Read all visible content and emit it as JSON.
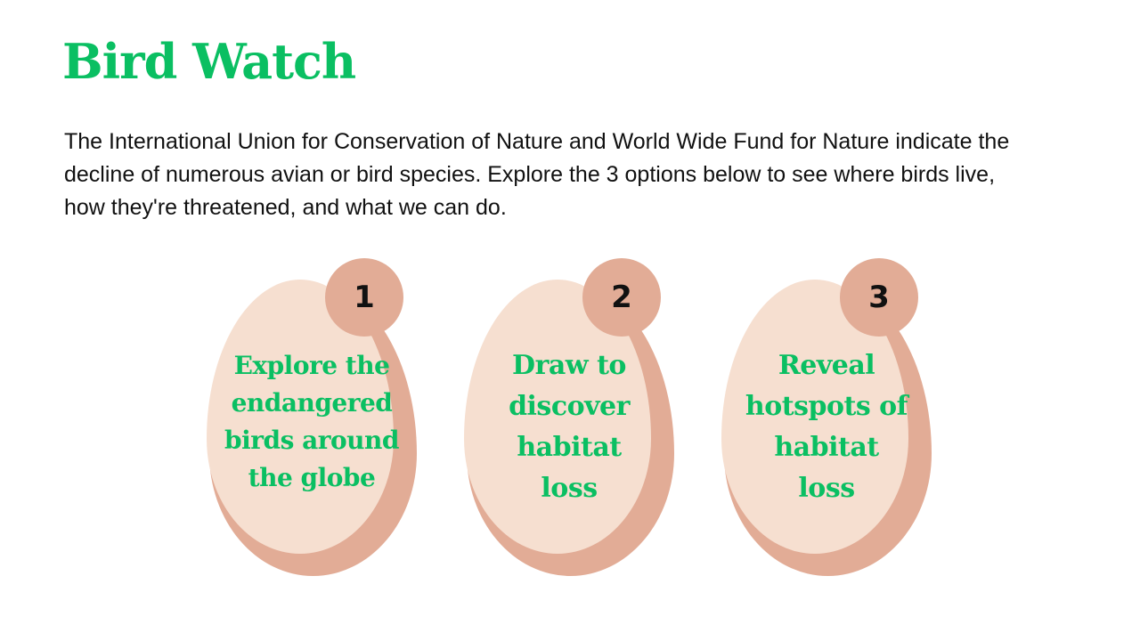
{
  "title": "Bird Watch",
  "intro": "The International Union for Conservation of Nature and World Wide Fund for Nature indicate the decline of numerous avian or bird species. Explore the 3 options below to see where birds live, how they're threatened, and what we can do.",
  "colors": {
    "accent_green": "#0abf62",
    "egg_light": "#f6dfd0",
    "egg_shadow": "#e2ac96",
    "text_dark": "#111111"
  },
  "options": [
    {
      "number": "1",
      "lines": [
        "Explore the",
        "endangered",
        "birds around",
        "the globe"
      ]
    },
    {
      "number": "2",
      "lines": [
        "Draw to",
        "discover",
        "habitat",
        "loss"
      ]
    },
    {
      "number": "3",
      "lines": [
        "Reveal",
        "hotspots of",
        "habitat",
        "loss"
      ]
    }
  ]
}
